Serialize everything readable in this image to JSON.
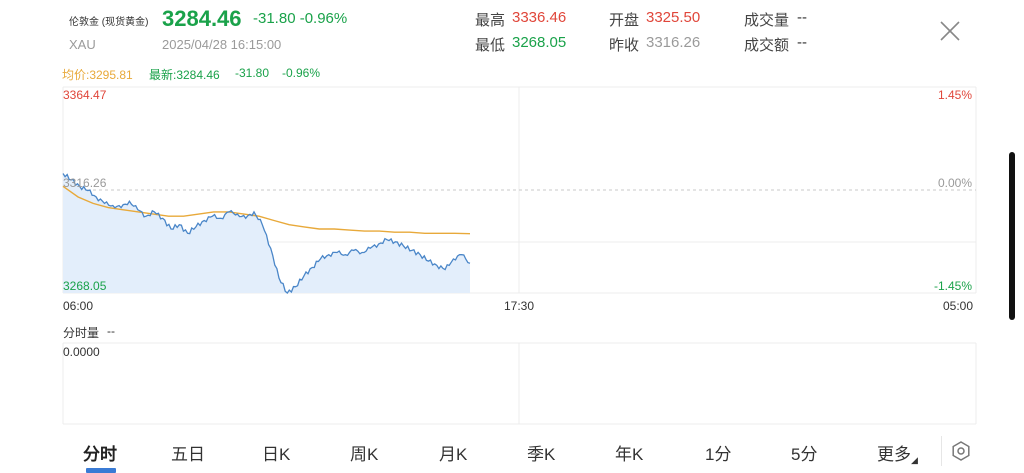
{
  "header": {
    "name": "伦敦金 (现货黄金)",
    "code": "XAU",
    "price": "3284.46",
    "change": "-31.80 -0.96%",
    "datetime": "2025/04/28 16:15:00",
    "stats": {
      "high_label": "最高",
      "high_value": "3336.46",
      "low_label": "最低",
      "low_value": "3268.05",
      "open_label": "开盘",
      "open_value": "3325.50",
      "prevclose_label": "昨收",
      "prevclose_value": "3316.26",
      "volume_label": "成交量",
      "volume_value": "--",
      "amount_label": "成交额",
      "amount_value": "--"
    },
    "close_icon": "close-icon"
  },
  "legend": {
    "avg": "均价:3295.81",
    "latest": "最新:3284.46",
    "latest_change": "-31.80",
    "latest_pct": "-0.96%"
  },
  "chart": {
    "y_top_label": "3364.47",
    "y_mid_label": "3316.26",
    "y_bottom_label": "3268.05",
    "pct_top_label": "1.45%",
    "pct_mid_label": "0.00%",
    "pct_bottom_label": "-1.45%",
    "x_start_label": "06:00",
    "x_mid_label": "17:30",
    "x_end_label": "05:00",
    "volume_title": "分时量",
    "volume_value": "--",
    "volume_axis_label": "0.0000",
    "colors": {
      "price_line": "#4a86c8",
      "avg_line": "#e8a93a",
      "fill": "#e3eefb",
      "up": "#e0463a",
      "down": "#1aa24a"
    }
  },
  "chart_data": {
    "type": "line",
    "x_range": [
      "06:00",
      "05:00"
    ],
    "ylim": [
      3268.05,
      3364.47
    ],
    "reference": 3316.26,
    "series": [
      {
        "values": [
          3324,
          3321,
          3318,
          3316,
          3313,
          3310,
          3309,
          3308,
          3311,
          3307,
          3304,
          3306,
          3303,
          3298,
          3300,
          3296,
          3299,
          3302,
          3304,
          3303,
          3306,
          3305,
          3303,
          3306,
          3300,
          3289,
          3275,
          3268.05,
          3271,
          3276,
          3280,
          3284,
          3286,
          3287,
          3286,
          3288,
          3287,
          3289,
          3291,
          3293,
          3292,
          3290,
          3288,
          3286,
          3283,
          3281,
          3279,
          3284,
          3286,
          3282
        ]
      },
      {
        "values": [
          3318,
          3313,
          3310,
          3308,
          3307,
          3306,
          3305,
          3304,
          3304,
          3305,
          3306,
          3306,
          3305,
          3304,
          3302,
          3300,
          3299,
          3298,
          3298,
          3297.5,
          3297,
          3297,
          3296.5,
          3296.5,
          3296,
          3296,
          3296,
          3295.81
        ]
      }
    ]
  },
  "tabs": [
    {
      "label": "分时",
      "active": true
    },
    {
      "label": "五日"
    },
    {
      "label": "日K"
    },
    {
      "label": "周K"
    },
    {
      "label": "月K"
    },
    {
      "label": "季K"
    },
    {
      "label": "年K"
    },
    {
      "label": "1分"
    },
    {
      "label": "5分"
    },
    {
      "label": "更多"
    }
  ],
  "settings_icon": "settings-icon"
}
